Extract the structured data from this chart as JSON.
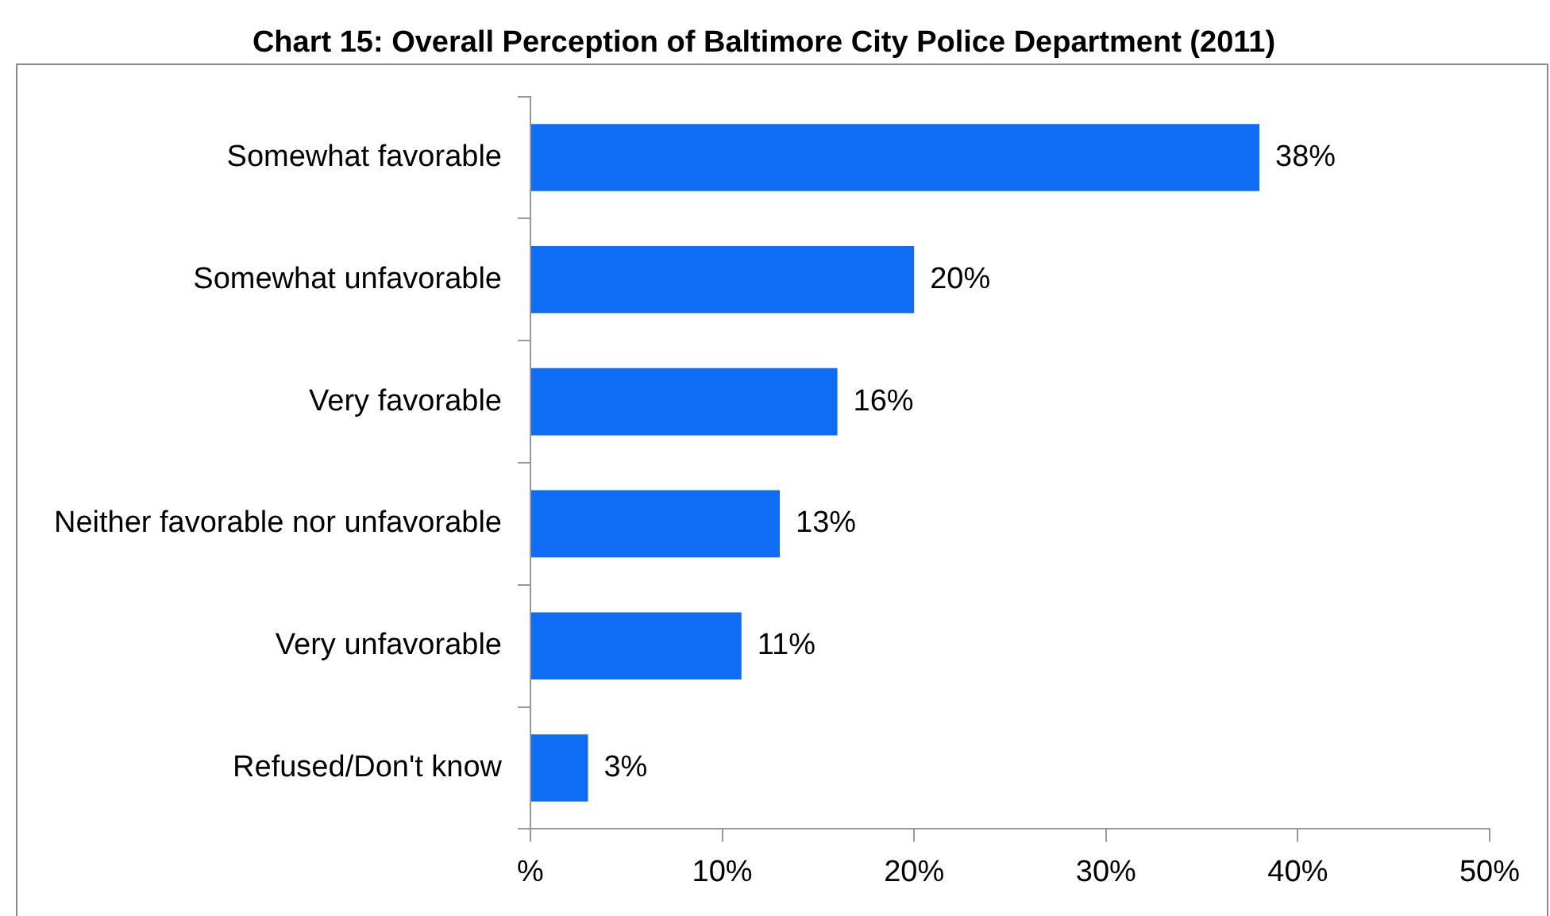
{
  "chart_data": {
    "type": "bar",
    "orientation": "horizontal",
    "title": "Chart 15: Overall Perception of Baltimore City Police Department (2011)",
    "categories": [
      "Somewhat favorable",
      "Somewhat unfavorable",
      "Very favorable",
      "Neither favorable nor unfavorable",
      "Very unfavorable",
      "Refused/Don't know"
    ],
    "values": [
      38,
      20,
      16,
      13,
      11,
      3
    ],
    "value_labels": [
      "38%",
      "20%",
      "16%",
      "13%",
      "11%",
      "3%"
    ],
    "color": "#0f6cf5",
    "xlim": [
      0,
      50
    ],
    "xticks": [
      {
        "value": 0,
        "label": "%"
      },
      {
        "value": 10,
        "label": "10%"
      },
      {
        "value": 20,
        "label": "20%"
      },
      {
        "value": 30,
        "label": "30%"
      },
      {
        "value": 40,
        "label": "40%"
      },
      {
        "value": 50,
        "label": "50%"
      }
    ],
    "grid": false,
    "legend": false
  }
}
